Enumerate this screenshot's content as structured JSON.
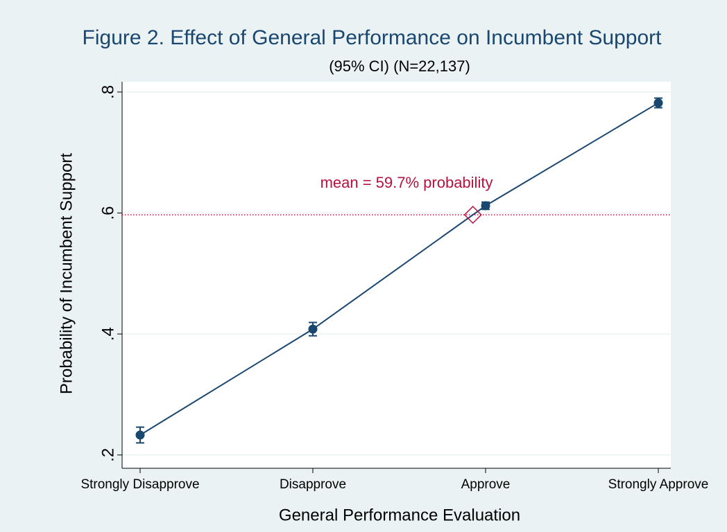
{
  "chart_data": {
    "type": "line",
    "title": "Figure 2. Effect of General Performance on Incumbent Support",
    "subtitle": "(95% CI) (N=22,137)",
    "x_label": "General Performance Evaluation",
    "y_label": "Probability of Incumbent Support",
    "categories": [
      "Strongly Disapprove",
      "Disapprove",
      "Approve",
      "Strongly Approve"
    ],
    "values": [
      0.233,
      0.408,
      0.612,
      0.782
    ],
    "errors": [
      0.013,
      0.011,
      0.006,
      0.008
    ],
    "color": "#1a476f",
    "ylim": [
      0.178,
      0.817
    ],
    "yticks": [
      {
        "value": 0.2,
        "label": ".2"
      },
      {
        "value": 0.4,
        "label": ".4"
      },
      {
        "value": 0.6,
        "label": ".6"
      },
      {
        "value": 0.8,
        "label": ".8"
      }
    ],
    "grid": true,
    "mean_line": {
      "value": 0.597,
      "label": "mean = 59.7% probability",
      "color": "#b5123f"
    }
  }
}
